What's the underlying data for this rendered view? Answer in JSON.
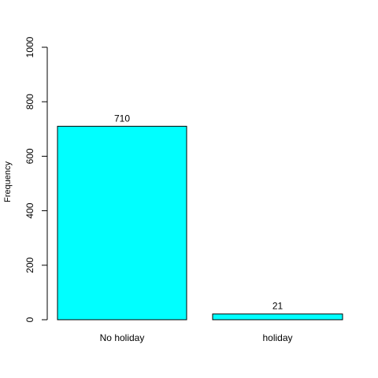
{
  "chart_data": {
    "type": "bar",
    "categories": [
      "No holiday",
      "holiday"
    ],
    "values": [
      710,
      21
    ],
    "data_labels": [
      "710",
      "21"
    ],
    "ylabel": "Frequency",
    "xlabel": "",
    "title": "",
    "ylim": [
      0,
      1000
    ],
    "yticks": [
      0,
      200,
      400,
      600,
      800,
      1000
    ],
    "bar_color": "#00ffff",
    "bar_border_color": "#000000",
    "grid": false,
    "legend": false
  }
}
